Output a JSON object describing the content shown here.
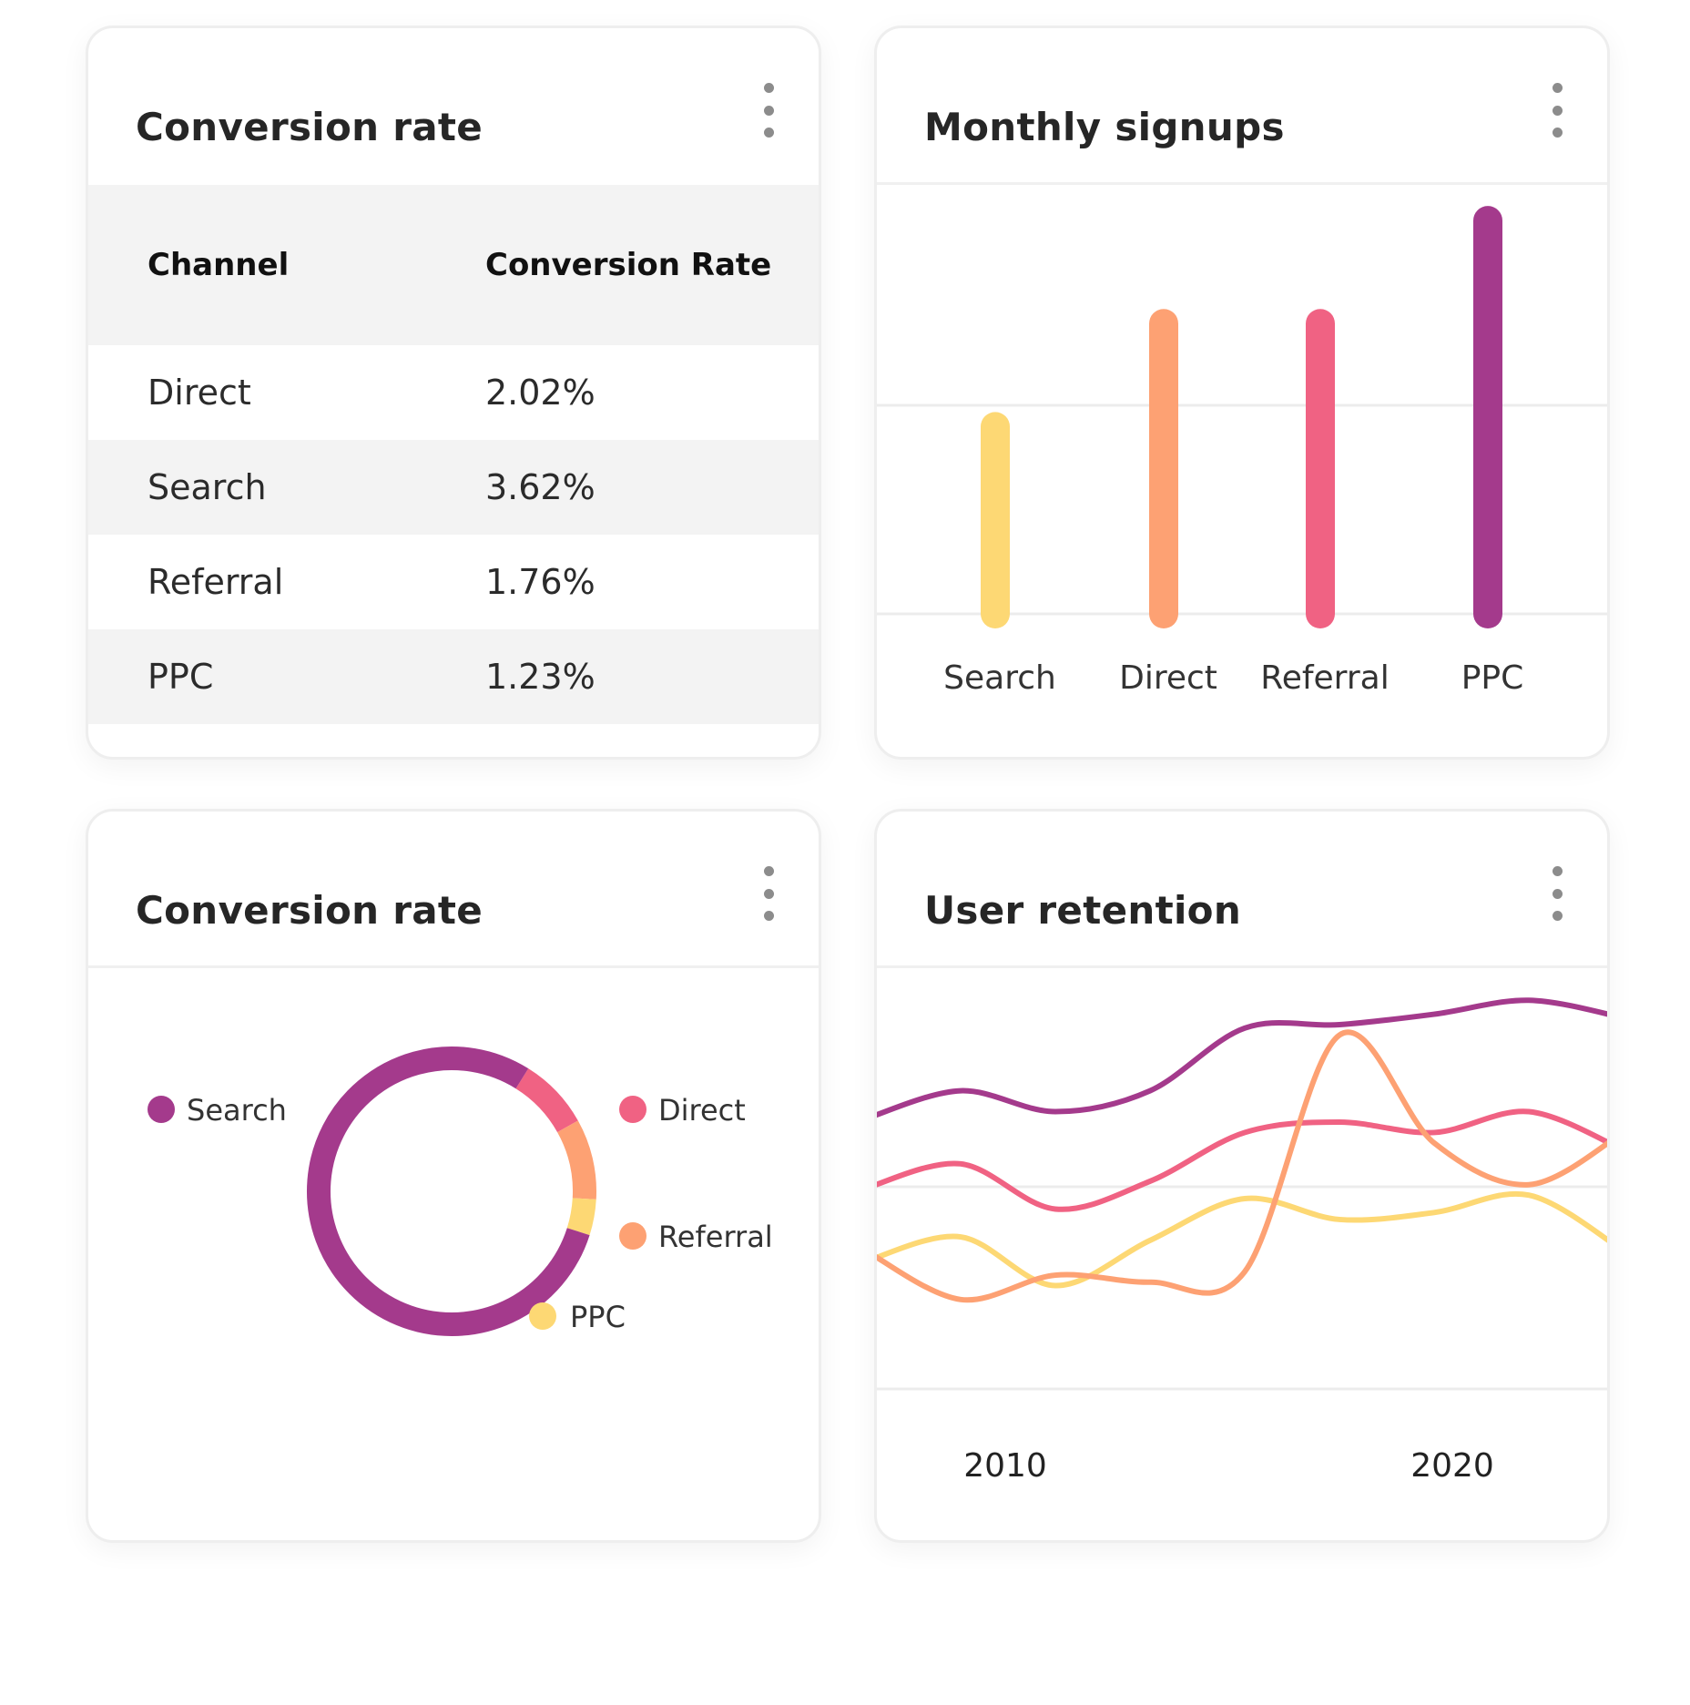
{
  "cards": {
    "table": {
      "title": "Conversion rate",
      "columns": [
        "Channel",
        "Conversion Rate"
      ],
      "rows": [
        {
          "channel": "Direct",
          "rate": "2.02%"
        },
        {
          "channel": "Search",
          "rate": "3.62%"
        },
        {
          "channel": "Referral",
          "rate": "1.76%"
        },
        {
          "channel": "PPC",
          "rate": "1.23%"
        }
      ]
    },
    "bar": {
      "title": "Monthly signups"
    },
    "donut": {
      "title": "Conversion rate"
    },
    "line": {
      "title": "User retention"
    }
  },
  "chart_data": [
    {
      "type": "table",
      "title": "Conversion rate",
      "columns": [
        "Channel",
        "Conversion Rate"
      ],
      "rows": [
        [
          "Direct",
          "2.02%"
        ],
        [
          "Search",
          "3.62%"
        ],
        [
          "Referral",
          "1.76%"
        ],
        [
          "PPC",
          "1.23%"
        ]
      ]
    },
    {
      "type": "bar",
      "title": "Monthly signups",
      "categories": [
        "Search",
        "Direct",
        "Referral",
        "PPC"
      ],
      "values": [
        1.0,
        1.55,
        1.55,
        2.1
      ],
      "colors": [
        "#fdd874",
        "#fda173",
        "#f06283",
        "#a43a8c"
      ],
      "ylim": [
        0,
        2.3
      ],
      "grid": true
    },
    {
      "type": "pie",
      "title": "Conversion rate",
      "style": "donut",
      "labels": [
        "Search",
        "Direct",
        "Referral",
        "PPC"
      ],
      "values": [
        79,
        8,
        9,
        4
      ],
      "colors": [
        "#a43a8c",
        "#f06283",
        "#fda173",
        "#fdd874"
      ],
      "legend": "around"
    },
    {
      "type": "line",
      "title": "User retention",
      "x_tick_labels": [
        "2010",
        "2020"
      ],
      "x": [
        0,
        1,
        2,
        3,
        4,
        5,
        6,
        7,
        8
      ],
      "series": [
        {
          "color": "#a43a8c",
          "values": [
            62,
            70,
            64,
            70,
            88,
            89,
            92,
            96,
            91
          ]
        },
        {
          "color": "#f06283",
          "values": [
            42,
            49,
            36,
            44,
            58,
            61,
            58,
            64,
            53
          ]
        },
        {
          "color": "#fdd874",
          "values": [
            21,
            28,
            14,
            27,
            39,
            33,
            35,
            40,
            24
          ]
        },
        {
          "color": "#fda173",
          "values": [
            24,
            10,
            17,
            15,
            18,
            86,
            55,
            43,
            58
          ]
        }
      ],
      "ylim": [
        0,
        100
      ],
      "grid": true
    }
  ]
}
